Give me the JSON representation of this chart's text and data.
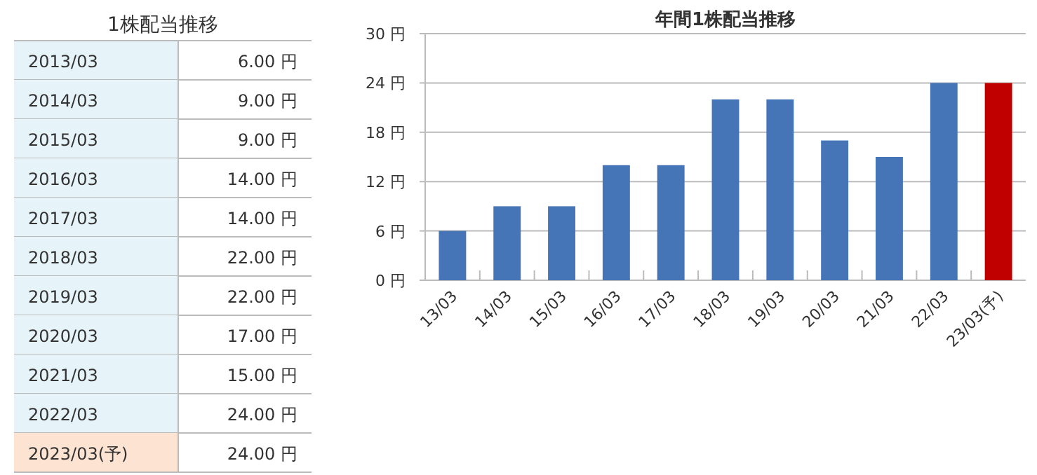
{
  "chart_data": [
    {
      "type": "other",
      "title": "1株配当推移",
      "categories": [
        "2013/03",
        "2014/03",
        "2015/03",
        "2016/03",
        "2017/03",
        "2018/03",
        "2019/03",
        "2020/03",
        "2021/03",
        "2022/03",
        "2023/03(予)"
      ],
      "value_labels": [
        "6.00 円",
        "9.00 円",
        "9.00 円",
        "14.00 円",
        "14.00 円",
        "22.00 円",
        "22.00 円",
        "17.00 円",
        "15.00 円",
        "24.00 円",
        "24.00 円"
      ],
      "colors": [
        "#e6f3f8",
        "#e6f3f8",
        "#e6f3f8",
        "#e6f3f8",
        "#e6f3f8",
        "#e6f3f8",
        "#e6f3f8",
        "#e6f3f8",
        "#e6f3f8",
        "#e6f3f8",
        "#fde4d2"
      ]
    },
    {
      "type": "bar",
      "title": "年間1株配当推移",
      "categories": [
        "13/03",
        "14/03",
        "15/03",
        "16/03",
        "17/03",
        "18/03",
        "19/03",
        "20/03",
        "21/03",
        "22/03",
        "23/03(予)"
      ],
      "values": [
        6,
        9,
        9,
        14,
        14,
        22,
        22,
        17,
        15,
        24,
        24
      ],
      "colors": [
        "#4575b6",
        "#4575b6",
        "#4575b6",
        "#4575b6",
        "#4575b6",
        "#4575b6",
        "#4575b6",
        "#4575b6",
        "#4575b6",
        "#4575b6",
        "#c00000"
      ],
      "ylim": [
        0,
        30
      ],
      "yticks": [
        {
          "value": 0,
          "label": "0 円"
        },
        {
          "value": 6,
          "label": "6 円"
        },
        {
          "value": 12,
          "label": "12 円"
        },
        {
          "value": 18,
          "label": "18 円"
        },
        {
          "value": 24,
          "label": "24 円"
        },
        {
          "value": 30,
          "label": "30 円"
        }
      ],
      "grid": "y"
    }
  ]
}
